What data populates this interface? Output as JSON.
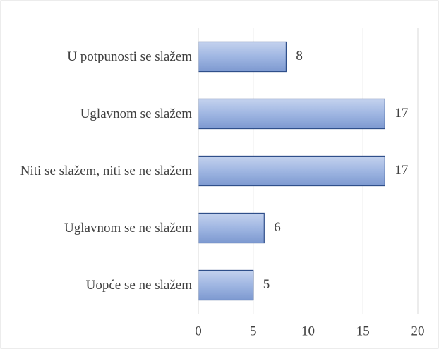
{
  "chart_data": {
    "type": "bar",
    "orientation": "horizontal",
    "categories": [
      "U potpunosti se slažem",
      "Uglavnom se slažem",
      "Niti se slažem, niti se ne slažem",
      "Uglavnom se ne slažem",
      "Uopće se ne slažem"
    ],
    "values": [
      8,
      17,
      17,
      6,
      5
    ],
    "color": "#8fa9dc",
    "xlim": [
      0,
      20
    ],
    "xticks": [
      0,
      5,
      10,
      15,
      20
    ],
    "grid": true
  }
}
